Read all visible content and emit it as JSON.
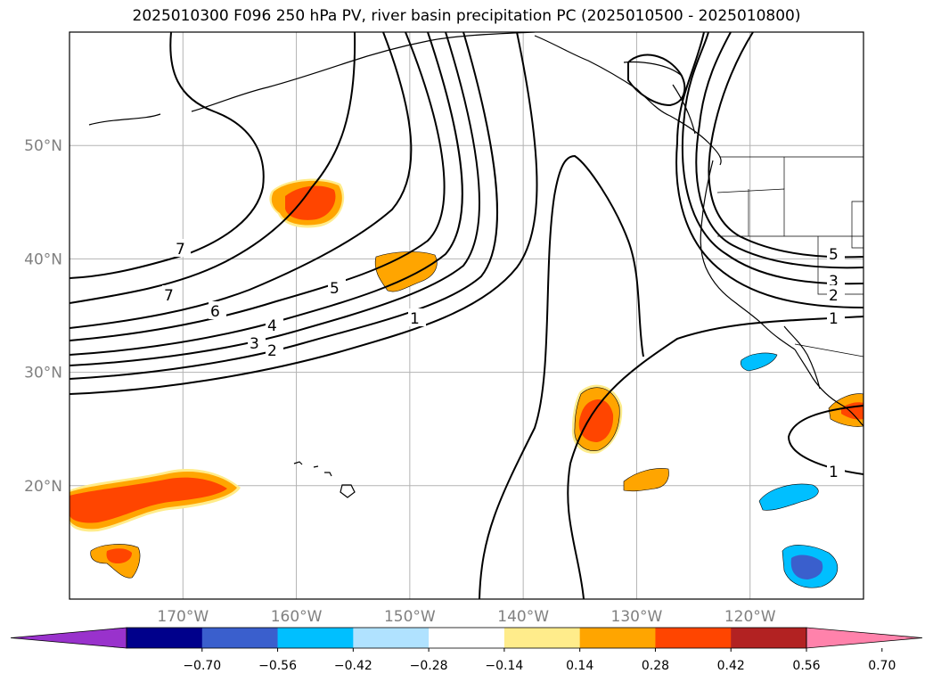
{
  "title": "2025010300 F096 250 hPa PV, river basin precipitation PC (2025010500 - 2025010800)",
  "lat_ticks": [
    {
      "label": "50°N",
      "lat": 50
    },
    {
      "label": "40°N",
      "lat": 40
    },
    {
      "label": "30°N",
      "lat": 30
    },
    {
      "label": "20°N",
      "lat": 20
    }
  ],
  "lon_ticks": [
    {
      "label": "170°W",
      "lon": -170
    },
    {
      "label": "160°W",
      "lon": -160
    },
    {
      "label": "150°W",
      "lon": -150
    },
    {
      "label": "140°W",
      "lon": -140
    },
    {
      "label": "130°W",
      "lon": -130
    },
    {
      "label": "120°W",
      "lon": -120
    }
  ],
  "extent": {
    "lon_min": -180,
    "lon_max": -110,
    "lat_min": 10,
    "lat_max": 60
  },
  "colorbar": {
    "colors": [
      "#9932cc",
      "#00008b",
      "#3a5fcd",
      "#00bfff",
      "#b0e2ff",
      "#ffffff",
      "#ffec8b",
      "#ffa500",
      "#ff4500",
      "#b22222",
      "#ff82ab"
    ],
    "tick_labels": [
      "−0.70",
      "−0.56",
      "−0.42",
      "−0.28",
      "−0.14",
      "0.14",
      "0.28",
      "0.42",
      "0.56",
      "0.70"
    ]
  },
  "contour_labels": [
    "7",
    "7",
    "6",
    "5",
    "4",
    "3",
    "2",
    "1",
    "5",
    "3",
    "2",
    "1",
    "1"
  ]
}
